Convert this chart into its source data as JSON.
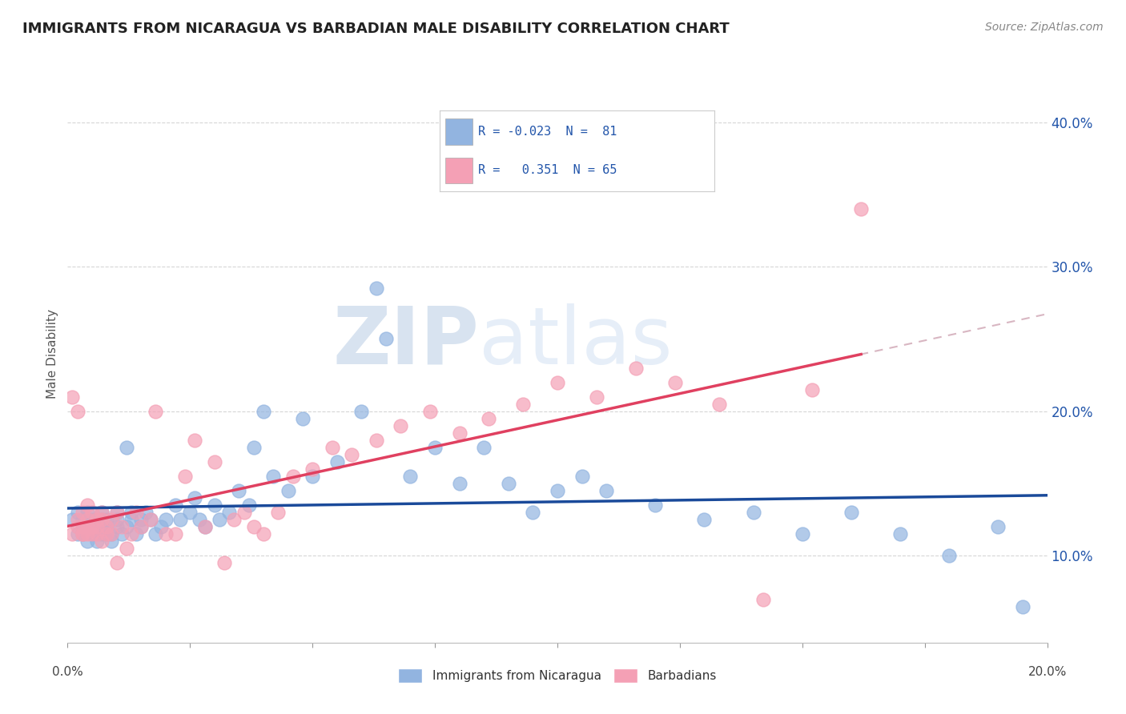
{
  "title": "IMMIGRANTS FROM NICARAGUA VS BARBADIAN MALE DISABILITY CORRELATION CHART",
  "source": "Source: ZipAtlas.com",
  "ylabel": "Male Disability",
  "yticks": [
    0.1,
    0.2,
    0.3,
    0.4
  ],
  "ytick_labels": [
    "10.0%",
    "20.0%",
    "30.0%",
    "40.0%"
  ],
  "xlim": [
    0.0,
    0.2
  ],
  "ylim": [
    0.04,
    0.44
  ],
  "blue_color": "#92b4e0",
  "pink_color": "#f4a0b5",
  "blue_line_color": "#1a4a9a",
  "pink_line_color": "#e04060",
  "pink_dashed_color": "#c898a8",
  "watermark_zip": "ZIP",
  "watermark_atlas": "atlas",
  "background_color": "#ffffff",
  "grid_color": "#cccccc",
  "blue_scatter_x": [
    0.001,
    0.002,
    0.002,
    0.003,
    0.003,
    0.003,
    0.004,
    0.004,
    0.004,
    0.004,
    0.005,
    0.005,
    0.005,
    0.005,
    0.006,
    0.006,
    0.006,
    0.007,
    0.007,
    0.007,
    0.007,
    0.008,
    0.008,
    0.008,
    0.009,
    0.009,
    0.01,
    0.01,
    0.01,
    0.011,
    0.012,
    0.012,
    0.013,
    0.013,
    0.014,
    0.015,
    0.015,
    0.016,
    0.017,
    0.018,
    0.019,
    0.02,
    0.022,
    0.023,
    0.025,
    0.026,
    0.027,
    0.028,
    0.03,
    0.031,
    0.033,
    0.035,
    0.037,
    0.038,
    0.04,
    0.042,
    0.045,
    0.048,
    0.05,
    0.055,
    0.06,
    0.063,
    0.065,
    0.07,
    0.075,
    0.08,
    0.085,
    0.09,
    0.095,
    0.1,
    0.105,
    0.11,
    0.12,
    0.13,
    0.14,
    0.15,
    0.16,
    0.17,
    0.18,
    0.19,
    0.195
  ],
  "blue_scatter_y": [
    0.125,
    0.115,
    0.13,
    0.12,
    0.115,
    0.125,
    0.11,
    0.12,
    0.125,
    0.13,
    0.115,
    0.12,
    0.125,
    0.115,
    0.11,
    0.12,
    0.125,
    0.115,
    0.12,
    0.125,
    0.13,
    0.115,
    0.12,
    0.125,
    0.11,
    0.115,
    0.12,
    0.13,
    0.125,
    0.115,
    0.175,
    0.12,
    0.125,
    0.13,
    0.115,
    0.125,
    0.12,
    0.13,
    0.125,
    0.115,
    0.12,
    0.125,
    0.135,
    0.125,
    0.13,
    0.14,
    0.125,
    0.12,
    0.135,
    0.125,
    0.13,
    0.145,
    0.135,
    0.175,
    0.2,
    0.155,
    0.145,
    0.195,
    0.155,
    0.165,
    0.2,
    0.285,
    0.25,
    0.155,
    0.175,
    0.15,
    0.175,
    0.15,
    0.13,
    0.145,
    0.155,
    0.145,
    0.135,
    0.125,
    0.13,
    0.115,
    0.13,
    0.115,
    0.1,
    0.12,
    0.065
  ],
  "pink_scatter_x": [
    0.001,
    0.001,
    0.002,
    0.002,
    0.002,
    0.003,
    0.003,
    0.003,
    0.003,
    0.004,
    0.004,
    0.004,
    0.004,
    0.005,
    0.005,
    0.005,
    0.006,
    0.006,
    0.006,
    0.007,
    0.007,
    0.007,
    0.008,
    0.008,
    0.009,
    0.009,
    0.01,
    0.01,
    0.011,
    0.012,
    0.013,
    0.014,
    0.015,
    0.017,
    0.018,
    0.02,
    0.022,
    0.024,
    0.026,
    0.028,
    0.03,
    0.032,
    0.034,
    0.036,
    0.038,
    0.04,
    0.043,
    0.046,
    0.05,
    0.054,
    0.058,
    0.063,
    0.068,
    0.074,
    0.08,
    0.086,
    0.093,
    0.1,
    0.108,
    0.116,
    0.124,
    0.133,
    0.142,
    0.152,
    0.162
  ],
  "pink_scatter_y": [
    0.115,
    0.21,
    0.12,
    0.2,
    0.125,
    0.115,
    0.12,
    0.13,
    0.115,
    0.12,
    0.125,
    0.115,
    0.135,
    0.12,
    0.115,
    0.13,
    0.125,
    0.115,
    0.12,
    0.11,
    0.13,
    0.125,
    0.115,
    0.12,
    0.125,
    0.115,
    0.13,
    0.095,
    0.12,
    0.105,
    0.115,
    0.13,
    0.12,
    0.125,
    0.2,
    0.115,
    0.115,
    0.155,
    0.18,
    0.12,
    0.165,
    0.095,
    0.125,
    0.13,
    0.12,
    0.115,
    0.13,
    0.155,
    0.16,
    0.175,
    0.17,
    0.18,
    0.19,
    0.2,
    0.185,
    0.195,
    0.205,
    0.22,
    0.21,
    0.23,
    0.22,
    0.205,
    0.07,
    0.215,
    0.34
  ]
}
